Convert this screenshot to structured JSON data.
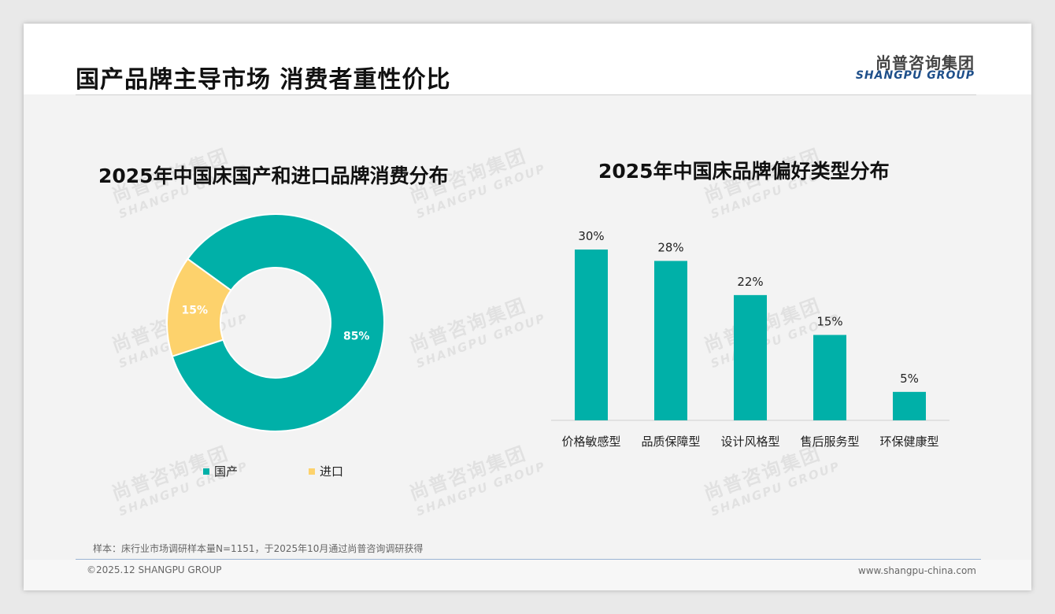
{
  "page": {
    "title": "国产品牌主导市场 消费者重性价比",
    "logo_cn": "尚普咨询集团",
    "logo_en": "SHANGPU GROUP"
  },
  "watermark": {
    "cn": "尚普咨询集团",
    "en": "SHANGPU GROUP"
  },
  "colors": {
    "teal": "#00b0a8",
    "yellow": "#fdd26c"
  },
  "chart_data": [
    {
      "type": "pie",
      "variant": "donut",
      "title": "2025年中国床国产和进口品牌消费分布",
      "categories": [
        "国产",
        "进口"
      ],
      "values": [
        85,
        15
      ],
      "labels": [
        "85%",
        "15%"
      ],
      "colors": [
        "#00b0a8",
        "#fdd26c"
      ],
      "legend_position": "bottom"
    },
    {
      "type": "bar",
      "title": "2025年中国床品牌偏好类型分布",
      "categories": [
        "价格敏感型",
        "品质保障型",
        "设计风格型",
        "售后服务型",
        "环保健康型"
      ],
      "values": [
        30,
        28,
        22,
        15,
        5
      ],
      "labels": [
        "30%",
        "28%",
        "22%",
        "15%",
        "5%"
      ],
      "ylim": [
        0,
        30
      ],
      "grid": false,
      "color": "#00b0a8"
    }
  ],
  "footnote": "样本：床行业市场调研样本量N=1151，于2025年10月通过尚普咨询调研获得",
  "footer": {
    "copyright": "©2025.12 SHANGPU GROUP",
    "website": "www.shangpu-china.com"
  }
}
